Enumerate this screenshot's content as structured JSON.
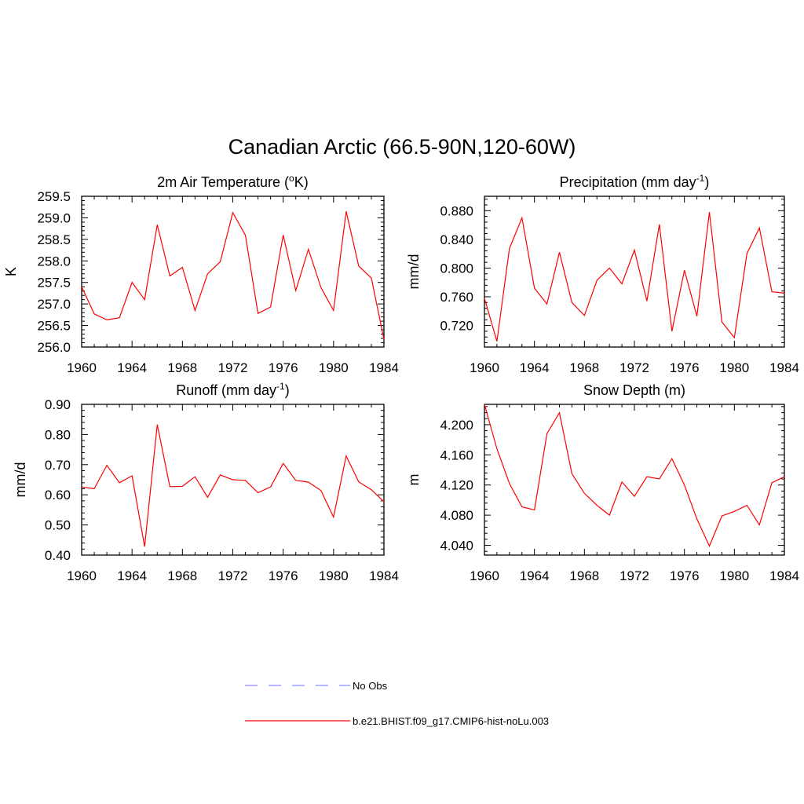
{
  "figure": {
    "title": "Canadian Arctic (66.5-90N,120-60W)"
  },
  "legend": {
    "entries": [
      {
        "label": "No Obs",
        "color": "#8c8cff",
        "style": "dashed"
      },
      {
        "label": "b.e21.BHIST.f09_g17.CMIP6-hist-noLu.003",
        "color": "#ff0000",
        "style": "solid"
      }
    ]
  },
  "chart_data": [
    {
      "type": "line",
      "title": "2m Air Temperature (",
      "title_sup": "o",
      "title_after": "K)",
      "ylabel": "K",
      "ylim": [
        256.0,
        259.5
      ],
      "yticks": [
        "256.0",
        "256.5",
        "257.0",
        "257.5",
        "258.0",
        "258.5",
        "259.0",
        "259.5"
      ],
      "xlim": [
        1960,
        1984
      ],
      "xticks": [
        "1960",
        "1964",
        "1968",
        "1972",
        "1976",
        "1980",
        "1984"
      ],
      "x": [
        1960,
        1961,
        1962,
        1963,
        1964,
        1965,
        1966,
        1967,
        1968,
        1969,
        1970,
        1971,
        1972,
        1973,
        1974,
        1975,
        1976,
        1977,
        1978,
        1979,
        1980,
        1981,
        1982,
        1983,
        1984
      ],
      "series": [
        {
          "values": [
            257.4,
            256.77,
            256.63,
            256.68,
            257.5,
            257.1,
            258.84,
            257.65,
            257.85,
            256.85,
            257.7,
            257.98,
            259.12,
            258.6,
            256.78,
            256.93,
            258.6,
            257.31,
            258.27,
            257.38,
            256.85,
            259.15,
            257.88,
            257.6,
            256.18
          ],
          "color": "#ff0000"
        }
      ]
    },
    {
      "type": "line",
      "title": "Precipitation (mm day",
      "title_sup": "-1",
      "title_after": ")",
      "ylabel": "mm/d",
      "ylim": [
        0.69,
        0.9
      ],
      "yticks": [
        "0.720",
        "0.760",
        "0.800",
        "0.840",
        "0.880"
      ],
      "xlim": [
        1960,
        1984
      ],
      "xticks": [
        "1960",
        "1964",
        "1968",
        "1972",
        "1976",
        "1980",
        "1984"
      ],
      "x": [
        1960,
        1961,
        1962,
        1963,
        1964,
        1965,
        1966,
        1967,
        1968,
        1969,
        1970,
        1971,
        1972,
        1973,
        1974,
        1975,
        1976,
        1977,
        1978,
        1979,
        1980,
        1981,
        1982,
        1983,
        1984
      ],
      "series": [
        {
          "values": [
            0.758,
            0.698,
            0.827,
            0.87,
            0.772,
            0.75,
            0.822,
            0.752,
            0.734,
            0.783,
            0.8,
            0.778,
            0.825,
            0.754,
            0.861,
            0.712,
            0.797,
            0.733,
            0.878,
            0.725,
            0.703,
            0.82,
            0.856,
            0.767,
            0.765
          ],
          "color": "#ff0000"
        }
      ]
    },
    {
      "type": "line",
      "title": "Runoff (mm day",
      "title_sup": "-1",
      "title_after": ")",
      "ylabel": "mm/d",
      "ylim": [
        0.4,
        0.9
      ],
      "yticks": [
        "0.40",
        "0.50",
        "0.60",
        "0.70",
        "0.80",
        "0.90"
      ],
      "xlim": [
        1960,
        1984
      ],
      "xticks": [
        "1960",
        "1964",
        "1968",
        "1972",
        "1976",
        "1980",
        "1984"
      ],
      "x": [
        1960,
        1961,
        1962,
        1963,
        1964,
        1965,
        1966,
        1967,
        1968,
        1969,
        1970,
        1971,
        1972,
        1973,
        1974,
        1975,
        1976,
        1977,
        1978,
        1979,
        1980,
        1981,
        1982,
        1983,
        1984
      ],
      "series": [
        {
          "values": [
            0.626,
            0.62,
            0.698,
            0.64,
            0.663,
            0.428,
            0.833,
            0.627,
            0.628,
            0.66,
            0.592,
            0.666,
            0.65,
            0.648,
            0.607,
            0.626,
            0.704,
            0.648,
            0.642,
            0.614,
            0.526,
            0.729,
            0.643,
            0.617,
            0.577
          ],
          "color": "#ff0000"
        }
      ]
    },
    {
      "type": "line",
      "title": "Snow Depth (m)",
      "title_sup": "",
      "title_after": "",
      "ylabel": "m",
      "ylim": [
        4.027,
        4.227
      ],
      "yticks": [
        "4.040",
        "4.080",
        "4.120",
        "4.160",
        "4.200"
      ],
      "xlim": [
        1960,
        1984
      ],
      "xticks": [
        "1960",
        "1964",
        "1968",
        "1972",
        "1976",
        "1980",
        "1984"
      ],
      "x": [
        1960,
        1961,
        1962,
        1963,
        1964,
        1965,
        1966,
        1967,
        1968,
        1969,
        1970,
        1971,
        1972,
        1973,
        1974,
        1975,
        1976,
        1977,
        1978,
        1979,
        1980,
        1981,
        1982,
        1983,
        1984
      ],
      "series": [
        {
          "values": [
            4.227,
            4.168,
            4.122,
            4.091,
            4.087,
            4.188,
            4.216,
            4.135,
            4.109,
            4.093,
            4.08,
            4.124,
            4.105,
            4.131,
            4.128,
            4.155,
            4.12,
            4.075,
            4.039,
            4.079,
            4.085,
            4.093,
            4.067,
            4.123,
            4.131
          ],
          "color": "#ff0000"
        }
      ]
    }
  ]
}
